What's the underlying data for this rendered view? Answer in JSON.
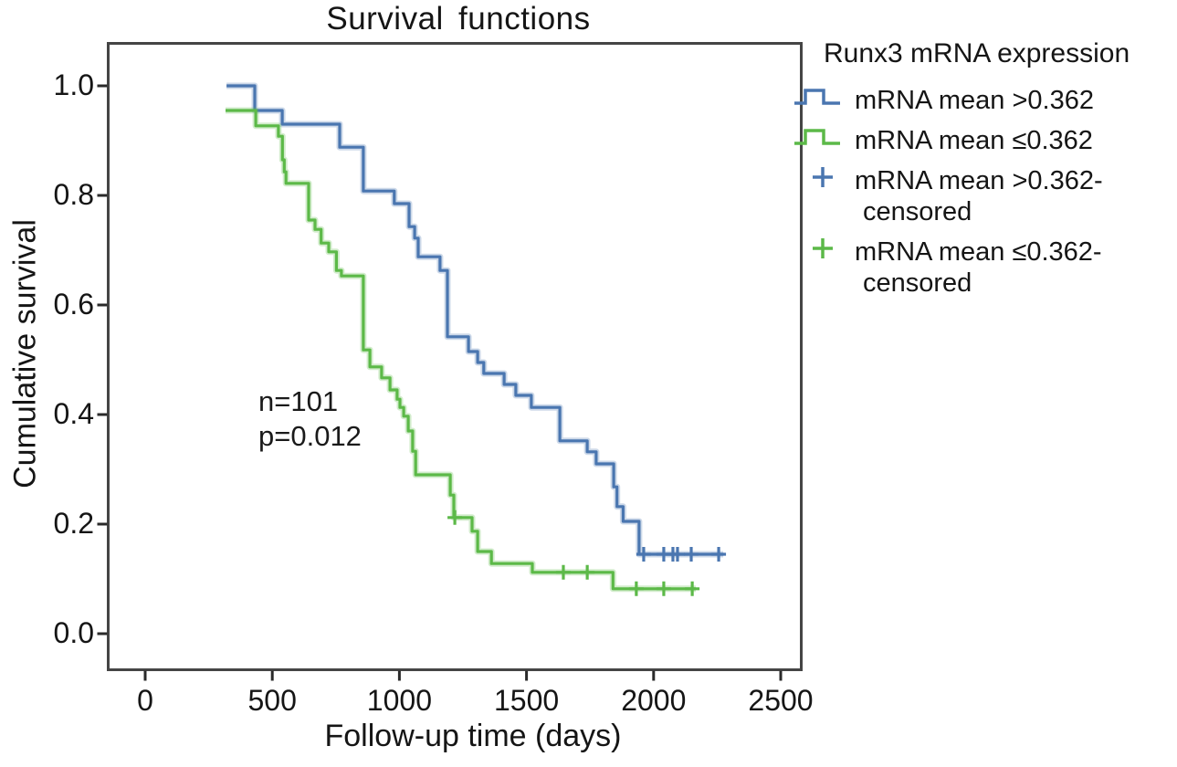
{
  "title": "Survival functions",
  "axes": {
    "x": {
      "label": "Follow-up time (days)"
    },
    "y": {
      "label": "Cumulative survival"
    }
  },
  "annotation": {
    "line1": "n=101",
    "line2": "p=0.012"
  },
  "legend": {
    "title": "Runx3 mRNA expression",
    "items": [
      {
        "symbol": "step",
        "color": "#4a76b0",
        "lines": [
          "mRNA mean >0.362"
        ]
      },
      {
        "symbol": "step",
        "color": "#5cb948",
        "lines": [
          "mRNA mean ≤0.362"
        ]
      },
      {
        "symbol": "plus",
        "color": "#4a76b0",
        "lines": [
          "mRNA mean >0.362-",
          "censored"
        ]
      },
      {
        "symbol": "plus",
        "color": "#5cb948",
        "lines": [
          "mRNA mean ≤0.362-",
          "censored"
        ]
      }
    ]
  },
  "chart_data": {
    "type": "line",
    "subtype": "kaplan-meier-step",
    "title": "Survival functions",
    "xlabel": "Follow-up time (days)",
    "ylabel": "Cumulative survival",
    "xlim": [
      0,
      2580
    ],
    "ylim": [
      -0.06,
      1.08
    ],
    "x_ticks": [
      0,
      500,
      1000,
      1500,
      2000,
      2500
    ],
    "y_ticks": [
      {
        "value": 1.0,
        "label": "1.0"
      },
      {
        "value": 0.8,
        "label": "0.8"
      },
      {
        "value": 0.6,
        "label": "0.6"
      },
      {
        "value": 0.4,
        "label": "0.4"
      },
      {
        "value": 0.2,
        "label": "0.2"
      },
      {
        "value": 0.0,
        "label": "0.0"
      }
    ],
    "grid": false,
    "legend_position": "right",
    "annotation": "n=101, p=0.012",
    "series": [
      {
        "name": "mRNA mean >0.362",
        "color": "#4a76b0",
        "steps": [
          [
            320,
            1.0
          ],
          [
            431,
            0.955
          ],
          [
            539,
            0.93
          ],
          [
            765,
            0.888
          ],
          [
            858,
            0.808
          ],
          [
            980,
            0.785
          ],
          [
            1038,
            0.743
          ],
          [
            1060,
            0.722
          ],
          [
            1074,
            0.688
          ],
          [
            1160,
            0.663
          ],
          [
            1189,
            0.542
          ],
          [
            1272,
            0.515
          ],
          [
            1308,
            0.495
          ],
          [
            1332,
            0.475
          ],
          [
            1412,
            0.455
          ],
          [
            1458,
            0.435
          ],
          [
            1519,
            0.413
          ],
          [
            1631,
            0.352
          ],
          [
            1739,
            0.332
          ],
          [
            1774,
            0.31
          ],
          [
            1843,
            0.268
          ],
          [
            1856,
            0.232
          ],
          [
            1880,
            0.205
          ],
          [
            1943,
            0.145
          ],
          [
            2274,
            0.145
          ]
        ],
        "censored": [
          [
            1961,
            0.145
          ],
          [
            2040,
            0.145
          ],
          [
            2076,
            0.145
          ],
          [
            2094,
            0.145
          ],
          [
            2148,
            0.145
          ],
          [
            2256,
            0.145
          ]
        ]
      },
      {
        "name": "mRNA mean ≤0.362",
        "color": "#5cb948",
        "steps": [
          [
            316,
            0.955
          ],
          [
            435,
            0.927
          ],
          [
            524,
            0.908
          ],
          [
            540,
            0.865
          ],
          [
            547,
            0.843
          ],
          [
            554,
            0.822
          ],
          [
            643,
            0.755
          ],
          [
            668,
            0.738
          ],
          [
            692,
            0.713
          ],
          [
            722,
            0.697
          ],
          [
            752,
            0.663
          ],
          [
            772,
            0.653
          ],
          [
            858,
            0.518
          ],
          [
            884,
            0.487
          ],
          [
            930,
            0.467
          ],
          [
            963,
            0.445
          ],
          [
            991,
            0.428
          ],
          [
            1002,
            0.413
          ],
          [
            1017,
            0.397
          ],
          [
            1035,
            0.37
          ],
          [
            1052,
            0.333
          ],
          [
            1064,
            0.29
          ],
          [
            1200,
            0.253
          ],
          [
            1214,
            0.212
          ],
          [
            1286,
            0.187
          ],
          [
            1308,
            0.15
          ],
          [
            1362,
            0.128
          ],
          [
            1523,
            0.112
          ],
          [
            1840,
            0.082
          ],
          [
            2166,
            0.082
          ]
        ],
        "censored": [
          [
            1218,
            0.212
          ],
          [
            1645,
            0.112
          ],
          [
            1739,
            0.112
          ],
          [
            1932,
            0.082
          ],
          [
            2040,
            0.082
          ],
          [
            2152,
            0.082
          ]
        ]
      }
    ]
  }
}
